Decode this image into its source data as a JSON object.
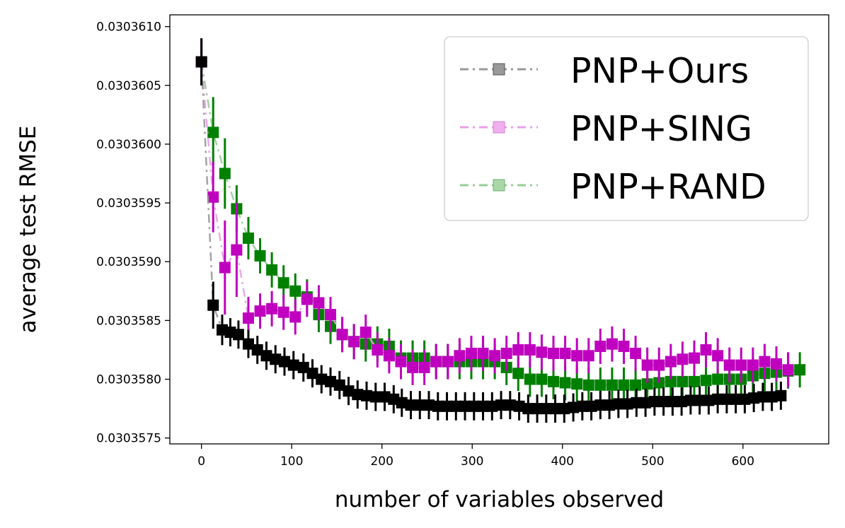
{
  "chart_data": {
    "type": "line",
    "title": "",
    "xlabel": "number of variables observed",
    "ylabel": "average test RMSE",
    "xlim": [
      -35,
      695
    ],
    "ylim": [
      0.03035745,
      0.0303611
    ],
    "xticks": [
      0,
      100,
      200,
      300,
      400,
      500,
      600
    ],
    "xtick_labels": [
      "0",
      "100",
      "200",
      "300",
      "400",
      "500",
      "600"
    ],
    "yticks": [
      0.0303575,
      0.030358,
      0.0303585,
      0.030359,
      0.0303595,
      0.03036,
      0.0303605,
      0.030361
    ],
    "ytick_labels": [
      "0.0303575",
      "0.0303580",
      "0.0303585",
      "0.0303590",
      "0.0303595",
      "0.0303600",
      "0.0303605",
      "0.0303610"
    ],
    "legend_position": "top-right",
    "series": [
      {
        "name": "PNP+Ours",
        "color": "#000000",
        "line_color": "#999999",
        "x": [
          0,
          13,
          23,
          32,
          41,
          52,
          62,
          72,
          82,
          92,
          102,
          113,
          123,
          133,
          143,
          153,
          163,
          173,
          183,
          193,
          203,
          213,
          222,
          232,
          242,
          252,
          262,
          272,
          282,
          292,
          302,
          312,
          322,
          332,
          342,
          352,
          362,
          372,
          382,
          392,
          402,
          412,
          422,
          432,
          442,
          452,
          462,
          472,
          482,
          492,
          502,
          512,
          522,
          532,
          542,
          552,
          562,
          572,
          582,
          592,
          602,
          612,
          622,
          632,
          642
        ],
        "values": [
          0.0303607,
          0.03035863,
          0.03035842,
          0.0303584,
          0.03035838,
          0.0303583,
          0.03035825,
          0.0303582,
          0.03035817,
          0.03035815,
          0.03035812,
          0.0303581,
          0.03035805,
          0.030358,
          0.03035798,
          0.03035795,
          0.0303579,
          0.03035787,
          0.03035786,
          0.03035785,
          0.03035785,
          0.03035783,
          0.0303578,
          0.03035778,
          0.03035778,
          0.03035778,
          0.03035777,
          0.03035777,
          0.03035777,
          0.03035777,
          0.03035777,
          0.03035777,
          0.03035777,
          0.03035778,
          0.03035778,
          0.03035777,
          0.03035775,
          0.03035775,
          0.03035775,
          0.03035775,
          0.03035775,
          0.03035776,
          0.03035777,
          0.03035777,
          0.03035778,
          0.03035778,
          0.03035779,
          0.03035779,
          0.0303578,
          0.0303578,
          0.03035781,
          0.03035781,
          0.03035781,
          0.03035781,
          0.03035782,
          0.03035782,
          0.03035782,
          0.03035783,
          0.03035783,
          0.03035783,
          0.03035783,
          0.03035784,
          0.03035785,
          0.03035785,
          0.03035786
        ],
        "error": [
          2e-07,
          2e-07,
          1.3e-07,
          1.2e-07,
          1.2e-07,
          1.2e-07,
          1.2e-07,
          1.2e-07,
          1.2e-07,
          1.2e-07,
          1.2e-07,
          1.2e-07,
          1.2e-07,
          1.2e-07,
          1.2e-07,
          1.2e-07,
          1.2e-07,
          1.2e-07,
          1.2e-07,
          1.2e-07,
          1.2e-07,
          1.2e-07,
          1.2e-07,
          1.2e-07,
          1.2e-07,
          1.2e-07,
          1.2e-07,
          1.2e-07,
          1.2e-07,
          1.2e-07,
          1.2e-07,
          1.2e-07,
          1.2e-07,
          1.2e-07,
          1.2e-07,
          1.2e-07,
          1.2e-07,
          1.2e-07,
          1.2e-07,
          1.2e-07,
          1.2e-07,
          1.2e-07,
          1.2e-07,
          1.2e-07,
          1.2e-07,
          1.2e-07,
          1.2e-07,
          1.2e-07,
          1.2e-07,
          1.2e-07,
          1.2e-07,
          1.2e-07,
          1.2e-07,
          1.2e-07,
          1.2e-07,
          1.2e-07,
          1.2e-07,
          1.2e-07,
          1.2e-07,
          1.2e-07,
          1.2e-07,
          1.2e-07,
          1.2e-07,
          1.2e-07,
          1.2e-07
        ]
      },
      {
        "name": "PNP+SING",
        "color": "#bf00bf",
        "line_color": "#e8a0e8",
        "x": [
          0,
          13,
          26,
          39,
          52,
          65,
          78,
          91,
          104,
          117,
          130,
          143,
          156,
          169,
          182,
          195,
          208,
          221,
          234,
          247,
          260,
          273,
          286,
          299,
          312,
          325,
          338,
          351,
          364,
          377,
          390,
          403,
          416,
          429,
          442,
          455,
          468,
          481,
          494,
          507,
          520,
          533,
          546,
          559,
          572,
          585,
          598,
          611,
          624,
          637,
          650
        ],
        "values": [
          0.0303607,
          0.03035955,
          0.03035895,
          0.0303591,
          0.03035852,
          0.03035858,
          0.0303586,
          0.03035857,
          0.03035853,
          0.03035868,
          0.03035865,
          0.03035855,
          0.03035838,
          0.03035832,
          0.0303584,
          0.03035825,
          0.0303582,
          0.03035815,
          0.0303581,
          0.0303581,
          0.03035815,
          0.03035815,
          0.0303582,
          0.03035822,
          0.03035822,
          0.0303582,
          0.03035822,
          0.03035825,
          0.03035825,
          0.03035823,
          0.03035822,
          0.03035822,
          0.0303582,
          0.0303582,
          0.03035828,
          0.0303583,
          0.03035828,
          0.03035822,
          0.03035812,
          0.03035812,
          0.03035815,
          0.03035817,
          0.03035818,
          0.03035825,
          0.0303582,
          0.03035812,
          0.03035812,
          0.03035812,
          0.03035815,
          0.03035813,
          0.03035808
        ],
        "error": [
          2e-07,
          3e-07,
          4e-07,
          4e-07,
          1.8e-07,
          1.5e-07,
          1.5e-07,
          1.5e-07,
          1.5e-07,
          1.5e-07,
          1.5e-07,
          1.5e-07,
          1.5e-07,
          1.5e-07,
          1.5e-07,
          1.5e-07,
          1.5e-07,
          1.5e-07,
          1.5e-07,
          1.5e-07,
          1.5e-07,
          1.5e-07,
          1.5e-07,
          1.5e-07,
          1.5e-07,
          1.5e-07,
          1.5e-07,
          1.5e-07,
          1.5e-07,
          1.5e-07,
          1.5e-07,
          1.5e-07,
          1.5e-07,
          1.5e-07,
          1.5e-07,
          1.5e-07,
          1.5e-07,
          1.5e-07,
          1.5e-07,
          1.5e-07,
          1.5e-07,
          1.5e-07,
          1.5e-07,
          1.5e-07,
          1.5e-07,
          1.5e-07,
          1.5e-07,
          1.5e-07,
          1.5e-07,
          1.5e-07,
          1.5e-07
        ]
      },
      {
        "name": "PNP+RAND",
        "color": "#008000",
        "line_color": "#99cc99",
        "x": [
          0,
          13,
          26,
          39,
          52,
          65,
          78,
          91,
          104,
          117,
          130,
          143,
          156,
          169,
          182,
          195,
          208,
          221,
          234,
          247,
          260,
          273,
          286,
          299,
          312,
          325,
          338,
          351,
          364,
          377,
          390,
          403,
          416,
          429,
          442,
          455,
          468,
          481,
          494,
          507,
          520,
          533,
          546,
          559,
          572,
          585,
          598,
          611,
          624,
          637,
          650,
          663
        ],
        "values": [
          0.0303607,
          0.0303601,
          0.03035975,
          0.03035945,
          0.0303592,
          0.03035905,
          0.03035893,
          0.03035882,
          0.03035875,
          0.0303587,
          0.03035855,
          0.03035845,
          0.03035838,
          0.03035832,
          0.0303583,
          0.0303583,
          0.03035828,
          0.03035818,
          0.03035818,
          0.03035818,
          0.03035815,
          0.03035815,
          0.03035815,
          0.03035815,
          0.03035815,
          0.03035815,
          0.0303581,
          0.03035805,
          0.030358,
          0.030358,
          0.03035798,
          0.03035797,
          0.03035796,
          0.03035795,
          0.03035795,
          0.03035795,
          0.03035795,
          0.03035795,
          0.03035796,
          0.03035797,
          0.03035798,
          0.03035798,
          0.03035798,
          0.03035799,
          0.030358,
          0.030358,
          0.030358,
          0.03035803,
          0.03035805,
          0.03035806,
          0.03035807,
          0.03035808
        ],
        "error": [
          2e-07,
          3e-07,
          3e-07,
          2e-07,
          1.8e-07,
          1.5e-07,
          1.5e-07,
          1.5e-07,
          1.5e-07,
          1.5e-07,
          1.5e-07,
          1.5e-07,
          1.5e-07,
          1.5e-07,
          1.5e-07,
          1.5e-07,
          1.5e-07,
          1.5e-07,
          1.5e-07,
          1.5e-07,
          1.5e-07,
          1.5e-07,
          1.5e-07,
          1.5e-07,
          1.5e-07,
          1.5e-07,
          1.5e-07,
          1.5e-07,
          1.5e-07,
          1.5e-07,
          1.5e-07,
          1.5e-07,
          1.5e-07,
          1.5e-07,
          1.5e-07,
          1.5e-07,
          1.5e-07,
          1.5e-07,
          1.5e-07,
          1.5e-07,
          1.5e-07,
          1.5e-07,
          1.5e-07,
          1.5e-07,
          1.5e-07,
          1.5e-07,
          1.5e-07,
          1.5e-07,
          1.5e-07,
          1.5e-07,
          1.5e-07,
          1.5e-07
        ]
      }
    ]
  }
}
